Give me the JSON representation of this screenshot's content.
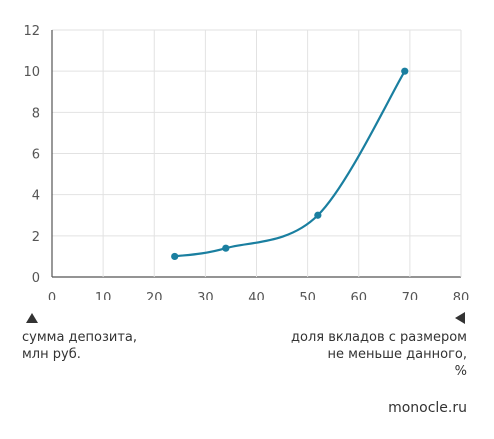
{
  "chart_data": {
    "type": "line",
    "x": [
      24,
      34,
      52,
      69
    ],
    "y": [
      1,
      1.4,
      3,
      10
    ],
    "xlim": [
      0,
      80
    ],
    "ylim": [
      0,
      12
    ],
    "xticks": [
      "0",
      "10",
      "20",
      "30",
      "40",
      "50",
      "60",
      "70",
      "80"
    ],
    "yticks": [
      "0",
      "2",
      "4",
      "6",
      "8",
      "10",
      "12"
    ],
    "grid": true,
    "ylabel": "сумма депозита,\nмлн руб.",
    "xlabel": "доля вкладов с размером\nне меньше данного,\n%",
    "line_color": "#1a7fa0"
  },
  "source": "monocle.ru",
  "colors": {
    "grid": "#e2e2e2",
    "axis": "#555555"
  }
}
